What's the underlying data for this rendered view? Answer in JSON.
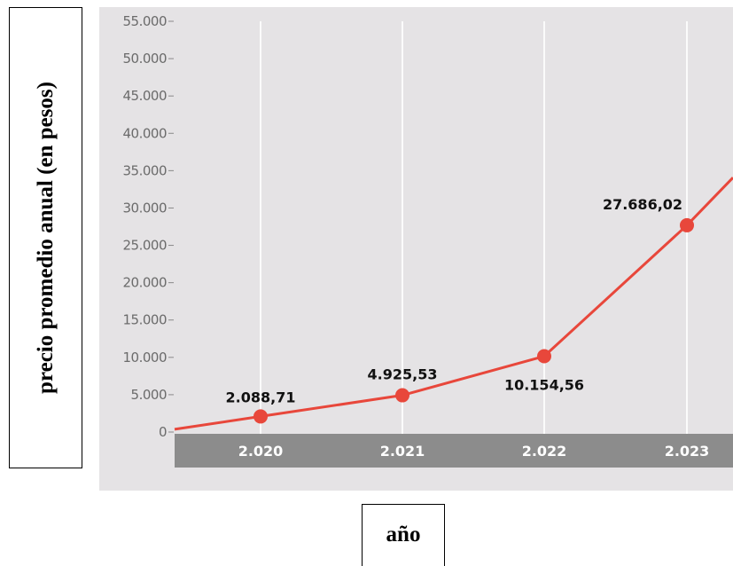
{
  "chart_data": {
    "type": "line",
    "title": "",
    "ylabel": "precio promedio anual (en pesos)",
    "xlabel": "año",
    "ylim": [
      0,
      55000
    ],
    "yticks": [
      0,
      5000,
      10000,
      15000,
      20000,
      25000,
      30000,
      35000,
      40000,
      45000,
      50000,
      55000
    ],
    "ytick_labels": [
      "0",
      "5.000",
      "10.000",
      "15.000",
      "20.000",
      "25.000",
      "30.000",
      "35.000",
      "40.000",
      "45.000",
      "50.000",
      "55.000"
    ],
    "categories": [
      "2.020",
      "2.021",
      "2.022",
      "2.023"
    ],
    "series": [
      {
        "values": [
          2088.71,
          4925.53,
          10154.56,
          27686.02
        ],
        "labels": [
          "2.088,71",
          "4.925,53",
          "10.154,56",
          "27.686,02"
        ],
        "color": "#e8473b"
      }
    ],
    "grid": true,
    "legend": "none"
  }
}
